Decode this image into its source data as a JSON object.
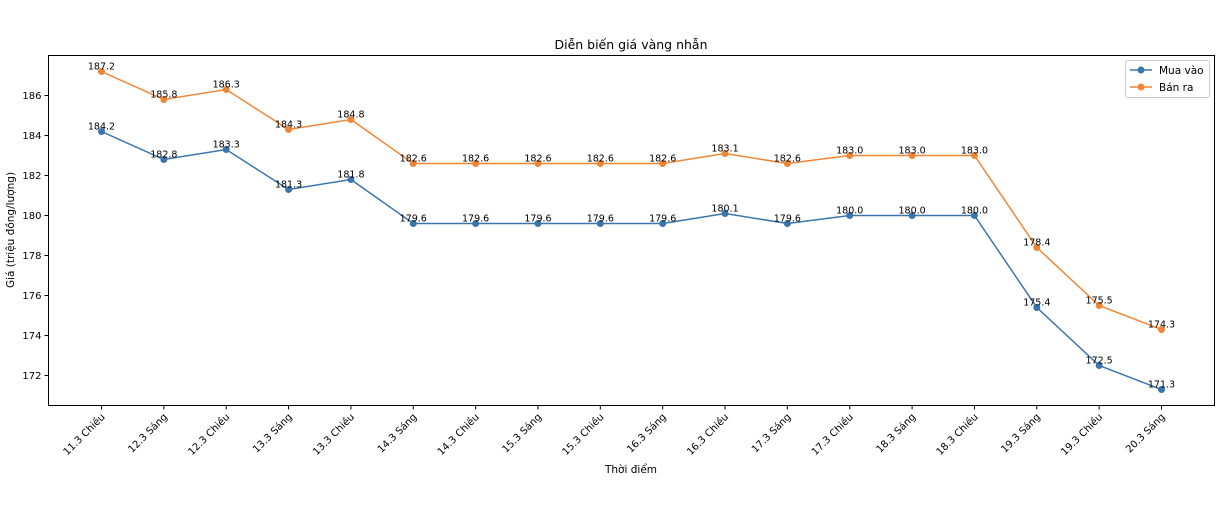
{
  "chart_data": {
    "type": "line",
    "title": "Diễn biến giá vàng nhẫn",
    "xlabel": "Thời điểm",
    "ylabel": "Giá (triệu đồng/lượng)",
    "categories": [
      "11.3 Chiều",
      "12.3 Sáng",
      "12.3 Chiều",
      "13.3 Sáng",
      "13.3 Chiều",
      "14.3 Sáng",
      "14.3 Chiều",
      "15.3 Sáng",
      "15.3 Chiều",
      "16.3 Sáng",
      "16.3 Chiều",
      "17.3 Sáng",
      "17.3 Chiều",
      "18.3 Sáng",
      "18.3 Chiều",
      "19.3 Sáng",
      "19.3 Chiều",
      "20.3 Sáng"
    ],
    "series": [
      {
        "name": "Mua vào",
        "color": "#3a75ad",
        "values": [
          184.2,
          182.8,
          183.3,
          181.3,
          181.8,
          179.6,
          179.6,
          179.6,
          179.6,
          179.6,
          180.1,
          179.6,
          180.0,
          180.0,
          180.0,
          175.4,
          172.5,
          171.3
        ]
      },
      {
        "name": "Bán ra",
        "color": "#ef8636",
        "values": [
          187.2,
          185.8,
          186.3,
          184.3,
          184.8,
          182.6,
          182.6,
          182.6,
          182.6,
          182.6,
          183.1,
          182.6,
          183.0,
          183.0,
          183.0,
          178.4,
          175.5,
          174.3
        ]
      }
    ],
    "yticks": [
      172,
      174,
      176,
      178,
      180,
      182,
      184,
      186
    ],
    "ylim": [
      170.5,
      188
    ],
    "grid": false,
    "legend": "top-right",
    "data_labels": true
  }
}
